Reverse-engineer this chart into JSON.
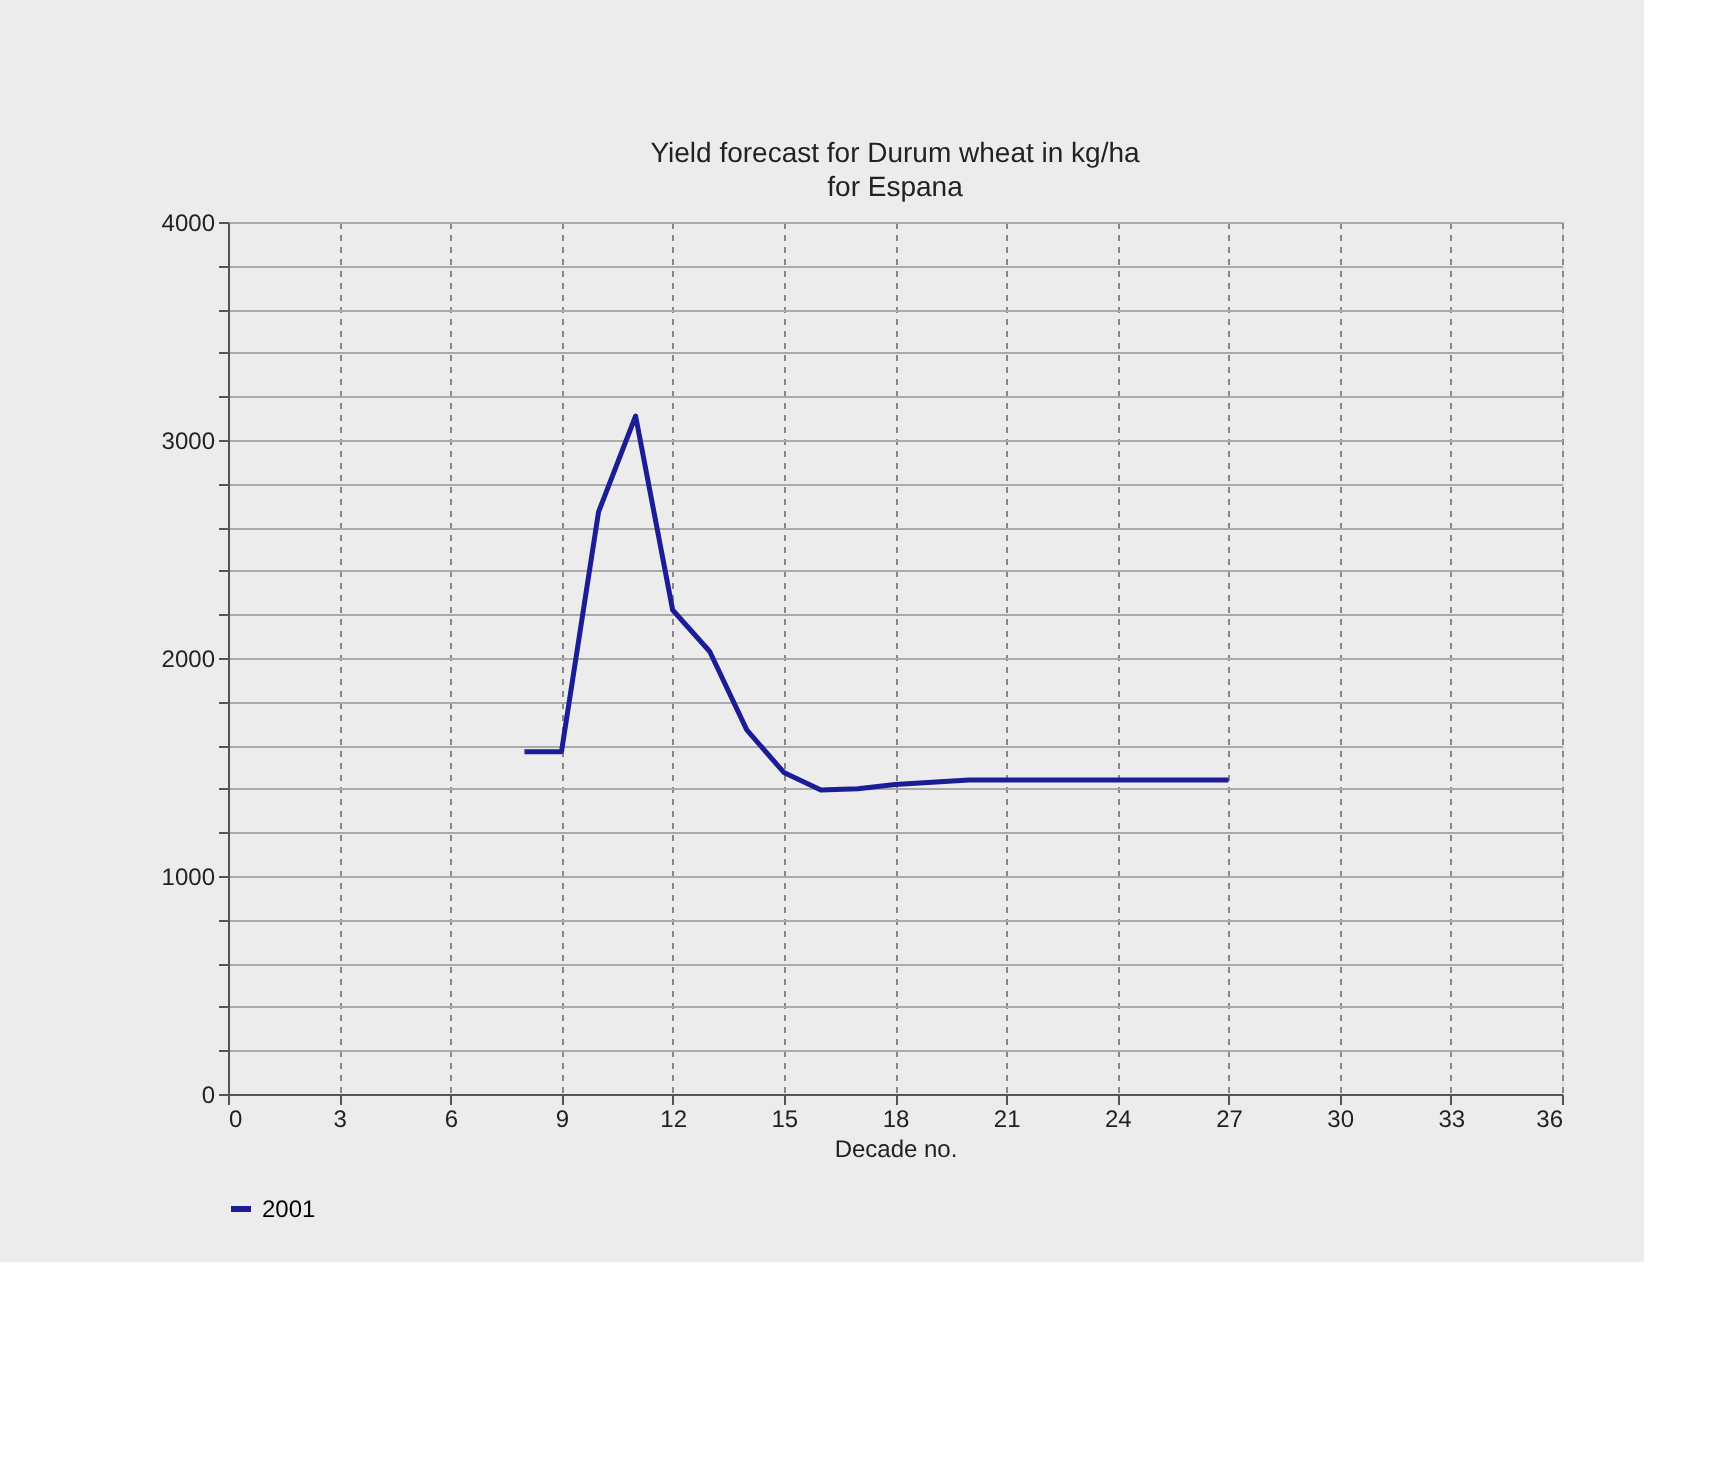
{
  "chart_data": {
    "type": "line",
    "title": "Yield forecast for Durum wheat in kg/ha",
    "subtitle": "for Espana",
    "xlabel": "Decade no.",
    "x": [
      8,
      9,
      10,
      11,
      12,
      13,
      14,
      15,
      16,
      17,
      18,
      19,
      20,
      21,
      22,
      23,
      24,
      25,
      26,
      27
    ],
    "series": [
      {
        "name": "2001",
        "color": "#1c1c96",
        "values": [
          1570,
          1570,
          2670,
          3110,
          2220,
          2030,
          1670,
          1475,
          1395,
          1400,
          1420,
          1430,
          1440,
          1440,
          1440,
          1440,
          1440,
          1440,
          1440,
          1440
        ]
      }
    ],
    "xlim": [
      0,
      36
    ],
    "xticks": [
      0,
      3,
      6,
      9,
      12,
      15,
      18,
      21,
      24,
      27,
      30,
      33,
      36
    ],
    "ylim": [
      0,
      4000
    ],
    "yticks": [
      0,
      {
        "value": 200,
        "label": null
      },
      {
        "value": 400,
        "label": null
      },
      {
        "value": 600,
        "label": null
      },
      {
        "value": 800,
        "label": null
      },
      1000,
      {
        "value": 1200,
        "label": null
      },
      {
        "value": 1400,
        "label": null
      },
      {
        "value": 1600,
        "label": null
      },
      {
        "value": 1800,
        "label": null
      },
      2000,
      {
        "value": 2200,
        "label": null
      },
      {
        "value": 2400,
        "label": null
      },
      {
        "value": 2600,
        "label": null
      },
      {
        "value": 2800,
        "label": null
      },
      3000,
      {
        "value": 3200,
        "label": null
      },
      {
        "value": 3400,
        "label": null
      },
      {
        "value": 3600,
        "label": null
      },
      {
        "value": 3800,
        "label": null
      },
      4000
    ],
    "grid": true,
    "legend": "bottom",
    "marker": "none",
    "line_style": "solid"
  }
}
